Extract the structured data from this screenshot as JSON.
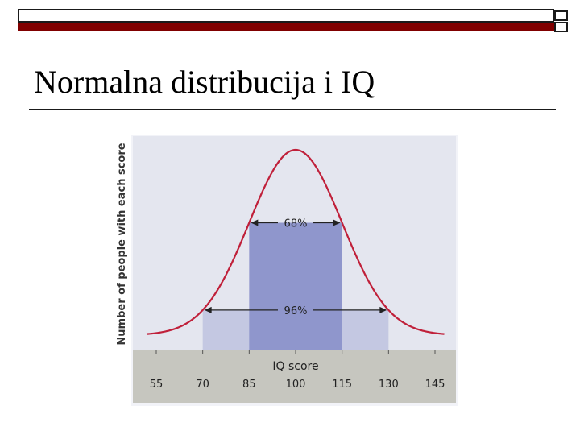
{
  "slide": {
    "title": "Normalna distribucija i IQ"
  },
  "colors": {
    "accent": "#800000",
    "curve": "#c0203a",
    "plot_background": "#e4e6ef",
    "band_96": "#c4c8e2",
    "band_68": "#8f96cc",
    "axis_strip": "#c6c6bf"
  },
  "chart_data": {
    "type": "area",
    "title": "",
    "xlabel": "IQ score",
    "ylabel": "Number of people with each score",
    "x_ticks": [
      55,
      70,
      85,
      100,
      115,
      130,
      145
    ],
    "xlim": [
      55,
      145
    ],
    "curve": {
      "mean": 100,
      "sd": 15,
      "x_start": 52,
      "x_end": 148
    },
    "bands": [
      {
        "label": "96%",
        "from": 70,
        "to": 130
      },
      {
        "label": "68%",
        "from": 85,
        "to": 115
      }
    ],
    "grid": false,
    "legend": "none"
  }
}
